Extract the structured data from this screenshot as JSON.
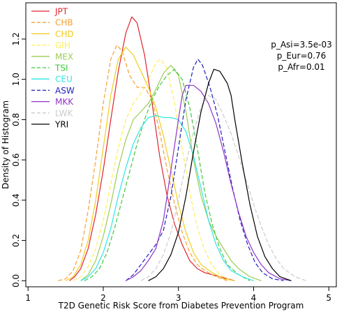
{
  "chart_data": {
    "type": "line",
    "title": "",
    "xlabel": "T2D Genetic Risk Score from Diabetes Prevention Program",
    "ylabel": "Density of Histogram",
    "xlim": [
      0.97,
      5.1
    ],
    "ylim": [
      -0.03,
      1.38
    ],
    "xticks": [
      1,
      2,
      3,
      4,
      5
    ],
    "yticks": [
      0.0,
      0.2,
      0.4,
      0.6,
      0.8,
      1.0,
      1.2
    ],
    "xtick_labels": [
      "1",
      "2",
      "3",
      "4",
      "5"
    ],
    "ytick_labels": [
      "0.0",
      "0.2",
      "0.4",
      "0.6",
      "0.8",
      "1.0",
      "1.2"
    ],
    "legend_position": "top-left",
    "annotations": [
      "p_Asi=3.5e-03",
      "p_Eur=0.76",
      "p_Afr=0.01"
    ],
    "series": [
      {
        "name": "JPT",
        "color": "#e0242c",
        "dash": "solid",
        "points": [
          [
            1.55,
            0.0
          ],
          [
            1.62,
            0.02
          ],
          [
            1.7,
            0.06
          ],
          [
            1.8,
            0.16
          ],
          [
            1.9,
            0.33
          ],
          [
            2.0,
            0.55
          ],
          [
            2.1,
            0.8
          ],
          [
            2.2,
            1.04
          ],
          [
            2.3,
            1.23
          ],
          [
            2.38,
            1.31
          ],
          [
            2.45,
            1.28
          ],
          [
            2.55,
            1.12
          ],
          [
            2.65,
            0.88
          ],
          [
            2.75,
            0.62
          ],
          [
            2.85,
            0.42
          ],
          [
            2.95,
            0.28
          ],
          [
            3.05,
            0.18
          ],
          [
            3.15,
            0.1
          ],
          [
            3.25,
            0.06
          ],
          [
            3.35,
            0.04
          ],
          [
            3.45,
            0.03
          ],
          [
            3.55,
            0.02
          ],
          [
            3.65,
            0.01
          ],
          [
            3.75,
            0.0
          ]
        ]
      },
      {
        "name": "CHB",
        "color": "#f5a035",
        "dash": "dashed",
        "points": [
          [
            1.4,
            0.0
          ],
          [
            1.5,
            0.01
          ],
          [
            1.6,
            0.05
          ],
          [
            1.7,
            0.15
          ],
          [
            1.8,
            0.35
          ],
          [
            1.9,
            0.6
          ],
          [
            2.0,
            0.88
          ],
          [
            2.1,
            1.1
          ],
          [
            2.18,
            1.17
          ],
          [
            2.25,
            1.14
          ],
          [
            2.35,
            1.02
          ],
          [
            2.45,
            0.96
          ],
          [
            2.55,
            0.96
          ],
          [
            2.65,
            0.9
          ],
          [
            2.75,
            0.74
          ],
          [
            2.85,
            0.55
          ],
          [
            2.95,
            0.38
          ],
          [
            3.05,
            0.24
          ],
          [
            3.15,
            0.14
          ],
          [
            3.25,
            0.08
          ],
          [
            3.35,
            0.05
          ],
          [
            3.5,
            0.02
          ],
          [
            3.65,
            0.0
          ]
        ]
      },
      {
        "name": "CHD",
        "color": "#f0cc1e",
        "dash": "solid",
        "points": [
          [
            1.5,
            0.0
          ],
          [
            1.6,
            0.02
          ],
          [
            1.7,
            0.08
          ],
          [
            1.8,
            0.2
          ],
          [
            1.9,
            0.4
          ],
          [
            2.0,
            0.66
          ],
          [
            2.1,
            0.92
          ],
          [
            2.2,
            1.1
          ],
          [
            2.3,
            1.16
          ],
          [
            2.4,
            1.12
          ],
          [
            2.5,
            1.04
          ],
          [
            2.6,
            0.96
          ],
          [
            2.7,
            0.86
          ],
          [
            2.8,
            0.72
          ],
          [
            2.9,
            0.55
          ],
          [
            3.0,
            0.38
          ],
          [
            3.1,
            0.24
          ],
          [
            3.2,
            0.14
          ],
          [
            3.3,
            0.08
          ],
          [
            3.45,
            0.04
          ],
          [
            3.6,
            0.01
          ],
          [
            3.75,
            0.0
          ]
        ]
      },
      {
        "name": "GIH",
        "color": "#ffee55",
        "dash": "dashed",
        "points": [
          [
            1.6,
            0.0
          ],
          [
            1.7,
            0.02
          ],
          [
            1.8,
            0.07
          ],
          [
            1.9,
            0.16
          ],
          [
            2.0,
            0.3
          ],
          [
            2.1,
            0.48
          ],
          [
            2.2,
            0.66
          ],
          [
            2.3,
            0.8
          ],
          [
            2.4,
            0.88
          ],
          [
            2.5,
            0.93
          ],
          [
            2.6,
            1.0
          ],
          [
            2.7,
            1.08
          ],
          [
            2.76,
            1.1
          ],
          [
            2.84,
            1.06
          ],
          [
            2.94,
            0.9
          ],
          [
            3.04,
            0.68
          ],
          [
            3.14,
            0.46
          ],
          [
            3.24,
            0.28
          ],
          [
            3.34,
            0.16
          ],
          [
            3.44,
            0.08
          ],
          [
            3.55,
            0.03
          ],
          [
            3.7,
            0.0
          ]
        ]
      },
      {
        "name": "MEX",
        "color": "#9ccc55",
        "dash": "solid",
        "points": [
          [
            1.7,
            0.0
          ],
          [
            1.8,
            0.03
          ],
          [
            1.9,
            0.1
          ],
          [
            2.0,
            0.22
          ],
          [
            2.1,
            0.38
          ],
          [
            2.2,
            0.56
          ],
          [
            2.3,
            0.7
          ],
          [
            2.4,
            0.8
          ],
          [
            2.5,
            0.84
          ],
          [
            2.6,
            0.88
          ],
          [
            2.7,
            0.95
          ],
          [
            2.8,
            1.03
          ],
          [
            2.9,
            1.07
          ],
          [
            3.0,
            1.02
          ],
          [
            3.1,
            0.84
          ],
          [
            3.2,
            0.6
          ],
          [
            3.3,
            0.42
          ],
          [
            3.4,
            0.3
          ],
          [
            3.5,
            0.22
          ],
          [
            3.6,
            0.16
          ],
          [
            3.7,
            0.1
          ],
          [
            3.8,
            0.06
          ],
          [
            3.95,
            0.02
          ],
          [
            4.1,
            0.0
          ]
        ]
      },
      {
        "name": "TSI",
        "color": "#3fc93f",
        "dash": "dashed",
        "points": [
          [
            1.75,
            0.0
          ],
          [
            1.85,
            0.02
          ],
          [
            1.95,
            0.06
          ],
          [
            2.05,
            0.14
          ],
          [
            2.15,
            0.26
          ],
          [
            2.25,
            0.4
          ],
          [
            2.35,
            0.54
          ],
          [
            2.45,
            0.68
          ],
          [
            2.55,
            0.8
          ],
          [
            2.65,
            0.9
          ],
          [
            2.75,
            0.97
          ],
          [
            2.85,
            1.02
          ],
          [
            2.95,
            1.05
          ],
          [
            3.05,
            1.0
          ],
          [
            3.15,
            0.86
          ],
          [
            3.25,
            0.66
          ],
          [
            3.35,
            0.44
          ],
          [
            3.45,
            0.28
          ],
          [
            3.55,
            0.16
          ],
          [
            3.65,
            0.08
          ],
          [
            3.8,
            0.03
          ],
          [
            3.95,
            0.0
          ]
        ]
      },
      {
        "name": "CEU",
        "color": "#2fe6e6",
        "dash": "solid",
        "points": [
          [
            1.7,
            0.0
          ],
          [
            1.8,
            0.02
          ],
          [
            1.9,
            0.06
          ],
          [
            2.0,
            0.14
          ],
          [
            2.1,
            0.26
          ],
          [
            2.2,
            0.42
          ],
          [
            2.3,
            0.56
          ],
          [
            2.4,
            0.68
          ],
          [
            2.5,
            0.76
          ],
          [
            2.6,
            0.81
          ],
          [
            2.7,
            0.82
          ],
          [
            2.8,
            0.81
          ],
          [
            2.9,
            0.81
          ],
          [
            3.0,
            0.8
          ],
          [
            3.1,
            0.74
          ],
          [
            3.2,
            0.62
          ],
          [
            3.3,
            0.46
          ],
          [
            3.4,
            0.3
          ],
          [
            3.5,
            0.18
          ],
          [
            3.6,
            0.1
          ],
          [
            3.7,
            0.05
          ],
          [
            3.85,
            0.02
          ],
          [
            4.0,
            0.0
          ]
        ]
      },
      {
        "name": "ASW",
        "color": "#1e1ebe",
        "dash": "dashed",
        "points": [
          [
            2.3,
            0.0
          ],
          [
            2.4,
            0.03
          ],
          [
            2.5,
            0.08
          ],
          [
            2.6,
            0.13
          ],
          [
            2.7,
            0.18
          ],
          [
            2.8,
            0.25
          ],
          [
            2.9,
            0.42
          ],
          [
            3.0,
            0.66
          ],
          [
            3.1,
            0.9
          ],
          [
            3.2,
            1.06
          ],
          [
            3.26,
            1.1
          ],
          [
            3.32,
            1.07
          ],
          [
            3.42,
            0.96
          ],
          [
            3.52,
            0.82
          ],
          [
            3.62,
            0.64
          ],
          [
            3.72,
            0.46
          ],
          [
            3.82,
            0.3
          ],
          [
            3.92,
            0.18
          ],
          [
            4.02,
            0.09
          ],
          [
            4.12,
            0.04
          ],
          [
            4.25,
            0.01
          ],
          [
            4.4,
            0.0
          ]
        ]
      },
      {
        "name": "MKK",
        "color": "#8e35c8",
        "dash": "solid",
        "points": [
          [
            2.3,
            0.0
          ],
          [
            2.4,
            0.02
          ],
          [
            2.5,
            0.05
          ],
          [
            2.6,
            0.1
          ],
          [
            2.7,
            0.16
          ],
          [
            2.8,
            0.3
          ],
          [
            2.9,
            0.55
          ],
          [
            3.0,
            0.8
          ],
          [
            3.05,
            0.92
          ],
          [
            3.1,
            0.97
          ],
          [
            3.2,
            0.97
          ],
          [
            3.3,
            0.94
          ],
          [
            3.4,
            0.88
          ],
          [
            3.5,
            0.78
          ],
          [
            3.6,
            0.64
          ],
          [
            3.7,
            0.48
          ],
          [
            3.8,
            0.34
          ],
          [
            3.9,
            0.22
          ],
          [
            4.0,
            0.14
          ],
          [
            4.1,
            0.08
          ],
          [
            4.2,
            0.04
          ],
          [
            4.35,
            0.01
          ],
          [
            4.5,
            0.0
          ]
        ]
      },
      {
        "name": "LWK",
        "color": "#cbcbcb",
        "dash": "dashed",
        "points": [
          [
            2.5,
            0.0
          ],
          [
            2.6,
            0.02
          ],
          [
            2.7,
            0.06
          ],
          [
            2.8,
            0.13
          ],
          [
            2.9,
            0.24
          ],
          [
            3.0,
            0.4
          ],
          [
            3.1,
            0.58
          ],
          [
            3.2,
            0.74
          ],
          [
            3.3,
            0.86
          ],
          [
            3.4,
            0.92
          ],
          [
            3.5,
            0.9
          ],
          [
            3.6,
            0.82
          ],
          [
            3.7,
            0.73
          ],
          [
            3.8,
            0.62
          ],
          [
            3.9,
            0.5
          ],
          [
            4.0,
            0.38
          ],
          [
            4.1,
            0.27
          ],
          [
            4.2,
            0.18
          ],
          [
            4.3,
            0.11
          ],
          [
            4.4,
            0.06
          ],
          [
            4.55,
            0.02
          ],
          [
            4.7,
            0.0
          ]
        ]
      },
      {
        "name": "YRI",
        "color": "#000000",
        "dash": "solid",
        "points": [
          [
            2.6,
            0.0
          ],
          [
            2.7,
            0.02
          ],
          [
            2.8,
            0.06
          ],
          [
            2.9,
            0.13
          ],
          [
            3.0,
            0.24
          ],
          [
            3.1,
            0.42
          ],
          [
            3.2,
            0.64
          ],
          [
            3.3,
            0.84
          ],
          [
            3.4,
            0.98
          ],
          [
            3.47,
            1.05
          ],
          [
            3.55,
            1.04
          ],
          [
            3.65,
            0.98
          ],
          [
            3.7,
            0.92
          ],
          [
            3.75,
            0.8
          ],
          [
            3.85,
            0.58
          ],
          [
            3.95,
            0.38
          ],
          [
            4.05,
            0.22
          ],
          [
            4.15,
            0.12
          ],
          [
            4.25,
            0.06
          ],
          [
            4.35,
            0.02
          ],
          [
            4.5,
            0.0
          ]
        ]
      }
    ]
  }
}
